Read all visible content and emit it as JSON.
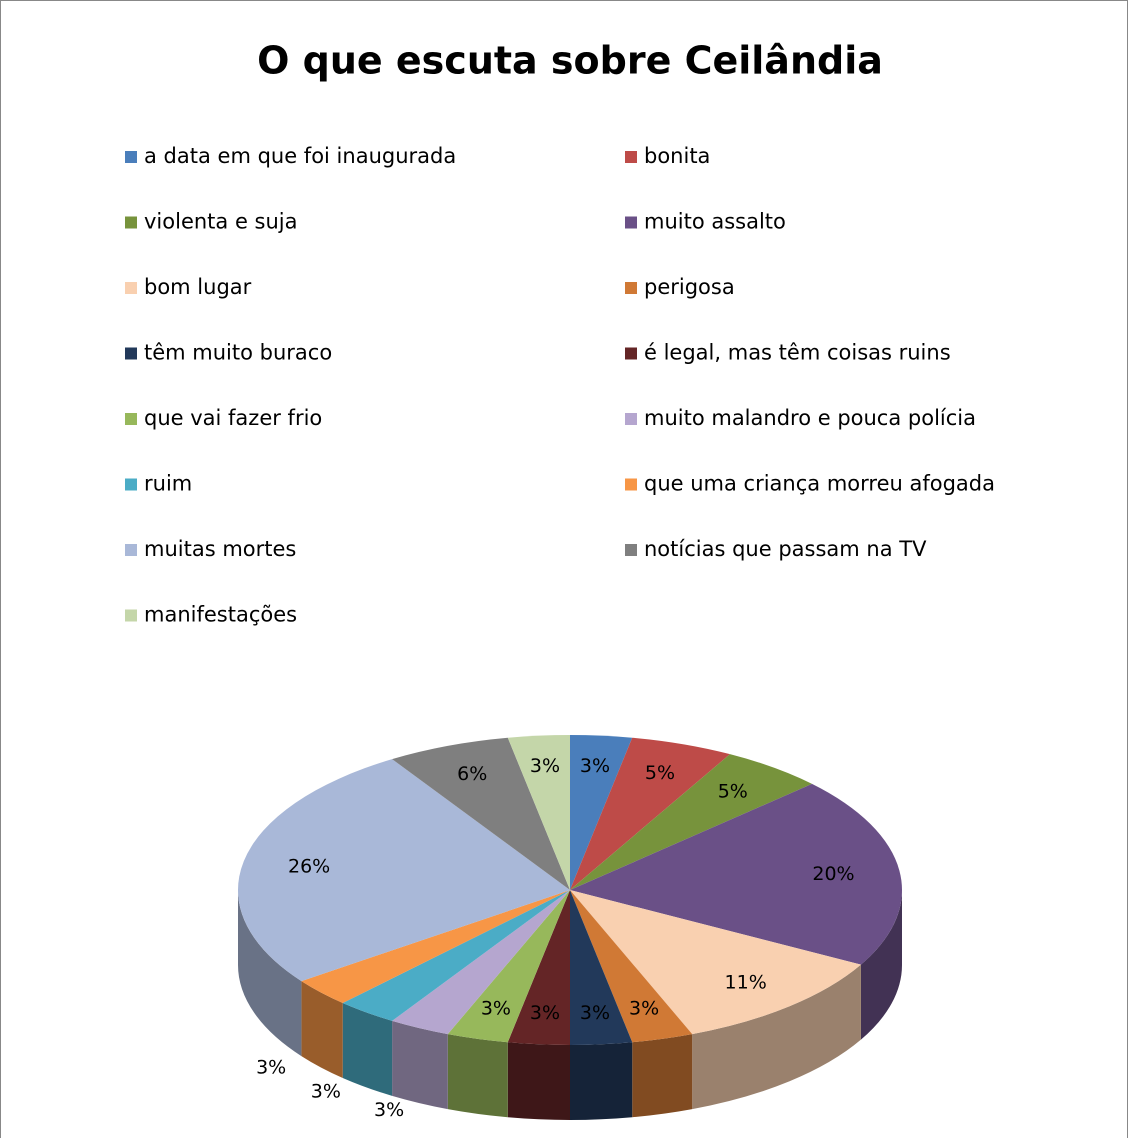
{
  "chart_data": {
    "type": "pie",
    "title": "O que escuta sobre Ceilândia",
    "categories": [
      "a data em que foi inaugurada",
      "bonita",
      " violenta e suja",
      "muito assalto",
      "bom lugar",
      "perigosa",
      "têm muito buraco",
      "é legal, mas têm coisas ruins",
      "que vai fazer frio",
      "muito malandro e pouca polícia",
      "ruim",
      "que uma criança morreu afogada",
      "muitas mortes",
      "notícias que passam na TV",
      "manifestações"
    ],
    "values": [
      3,
      5,
      5,
      20,
      11,
      3,
      3,
      3,
      3,
      3,
      3,
      3,
      26,
      6,
      3
    ],
    "value_labels": [
      "3%",
      "5%",
      "5%",
      "20%",
      "11%",
      "3%",
      "3%",
      "3%",
      "3%",
      "3%",
      "3%",
      "3%",
      "26%",
      "6%",
      "3%"
    ],
    "colors": [
      "#4a7ebb",
      "#be4b48",
      "#77933c",
      "#6a5087",
      "#f9d0b0",
      "#d07935",
      "#22395a",
      "#642526",
      "#97b85b",
      "#b5a6cf",
      "#4bacc6",
      "#f79646",
      "#a9b8d8",
      "#7f7f7f",
      "#c4d6a9"
    ],
    "legend": "top"
  }
}
